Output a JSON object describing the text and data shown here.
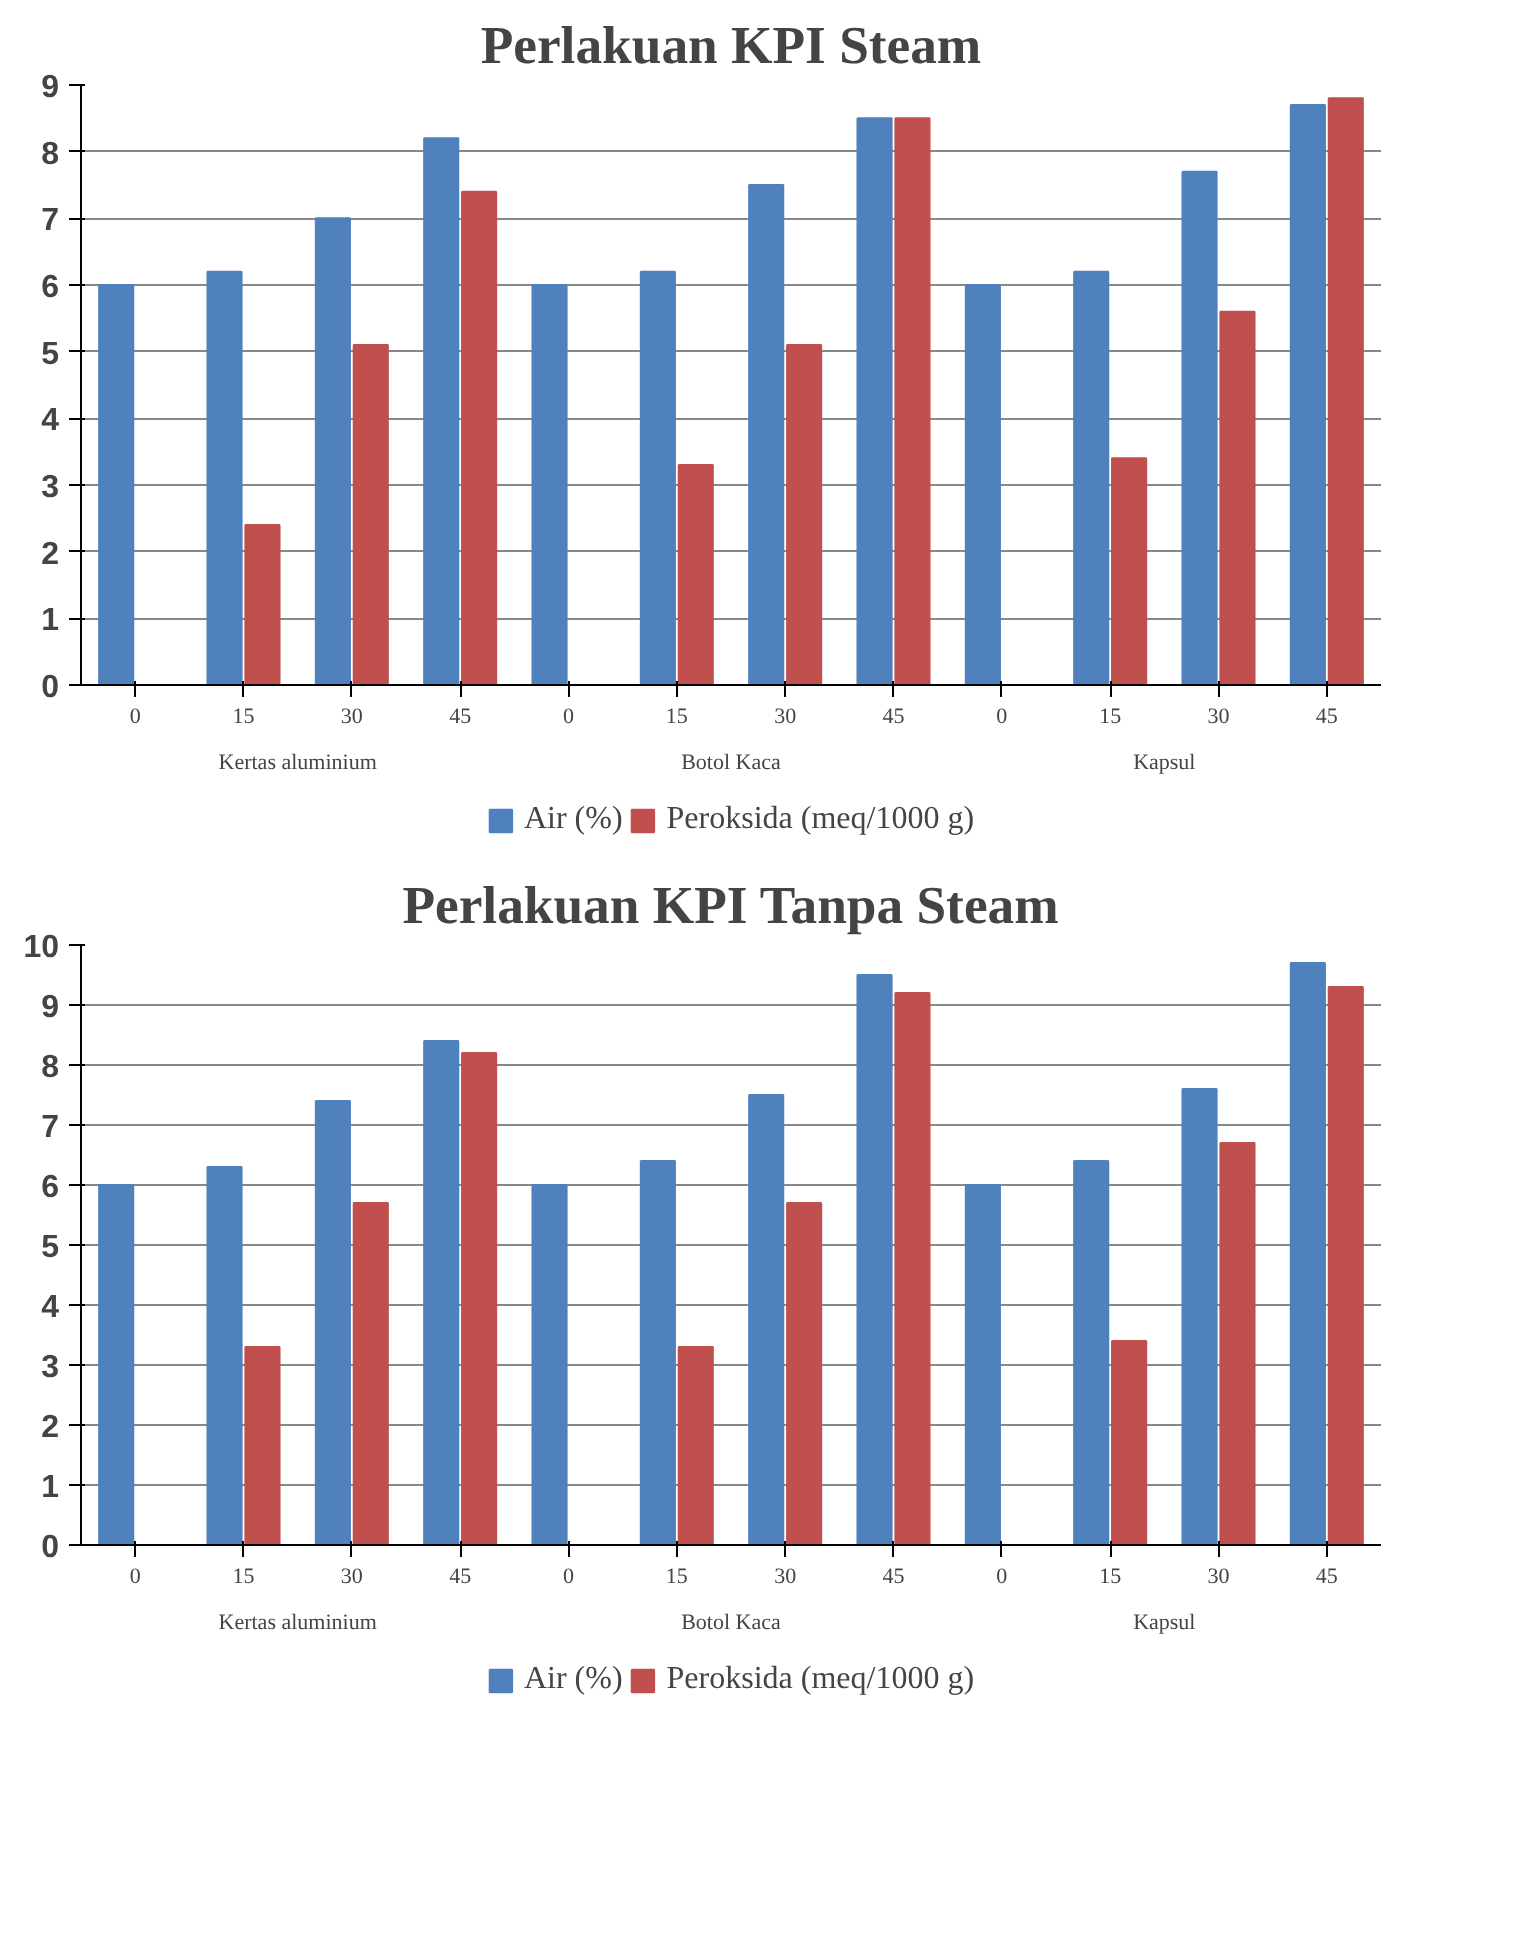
{
  "chart_data": [
    {
      "type": "bar",
      "title": "Perlakuan KPI Steam",
      "categories": [
        "0",
        "15",
        "30",
        "45",
        "0",
        "15",
        "30",
        "45",
        "0",
        "15",
        "30",
        "45"
      ],
      "annotations": [
        "Kertas aluminium",
        "Botol Kaca",
        "Kapsul"
      ],
      "series": [
        {
          "name": "Air (%)",
          "color": "#4f81bd",
          "values": [
            6.0,
            6.2,
            7.0,
            8.2,
            6.0,
            6.2,
            7.5,
            8.5,
            6.0,
            6.2,
            7.7,
            8.7
          ]
        },
        {
          "name": "Peroksida (meq/1000 g)",
          "color": "#c0504d",
          "values": [
            0,
            2.4,
            5.1,
            7.4,
            0,
            3.3,
            5.1,
            8.5,
            0,
            3.4,
            5.6,
            8.8
          ]
        }
      ],
      "ylim": [
        0,
        9
      ],
      "yticks": [
        0,
        1,
        2,
        3,
        4,
        5,
        6,
        7,
        8,
        9
      ],
      "grid": "y",
      "legend": "bottom"
    },
    {
      "type": "bar",
      "title": "Perlakuan KPI Tanpa Steam",
      "categories": [
        "0",
        "15",
        "30",
        "45",
        "0",
        "15",
        "30",
        "45",
        "0",
        "15",
        "30",
        "45"
      ],
      "annotations": [
        "Kertas aluminium",
        "Botol Kaca",
        "Kapsul"
      ],
      "series": [
        {
          "name": "Air (%)",
          "color": "#4f81bd",
          "values": [
            6.0,
            6.3,
            7.4,
            8.4,
            6.0,
            6.4,
            7.5,
            9.5,
            6.0,
            6.4,
            7.6,
            9.7
          ]
        },
        {
          "name": "Peroksida (meq/1000 g)",
          "color": "#c0504d",
          "values": [
            0,
            3.3,
            5.7,
            8.2,
            0,
            3.3,
            5.7,
            9.2,
            0,
            3.4,
            6.7,
            9.3
          ]
        }
      ],
      "ylim": [
        0,
        10
      ],
      "yticks": [
        0,
        1,
        2,
        3,
        4,
        5,
        6,
        7,
        8,
        9,
        10
      ],
      "grid": "y",
      "legend": "bottom"
    }
  ]
}
